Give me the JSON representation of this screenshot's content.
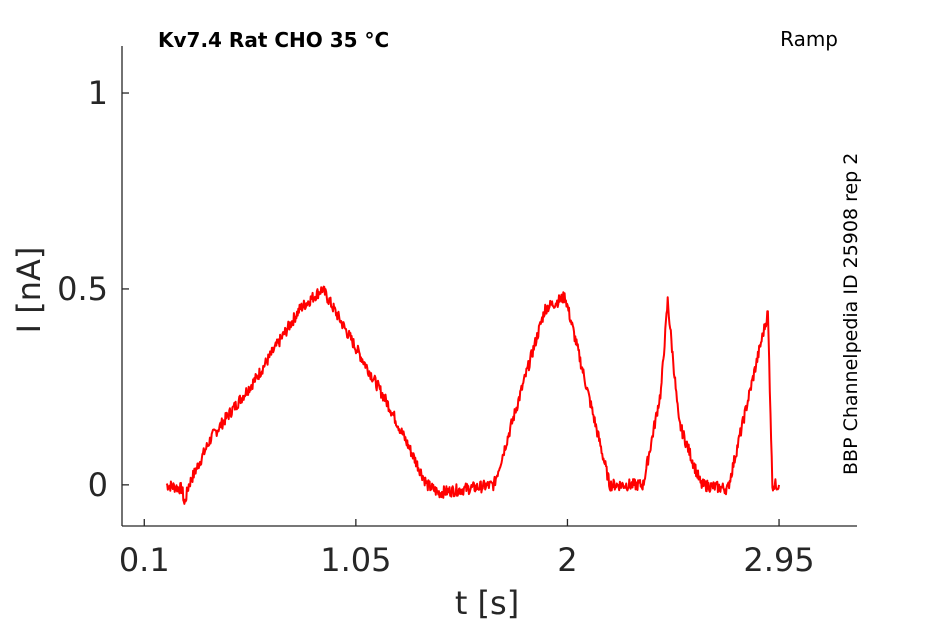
{
  "chart_data": {
    "type": "line",
    "title": "Kv7.4  Rat  CHO  35 °C",
    "protocol_label": "Ramp",
    "source_label": "BBP Channelpedia ID 25908 rep 2",
    "xlabel": "t [s]",
    "ylabel": "I [nA]",
    "xlim": [
      0.0,
      3.3
    ],
    "ylim": [
      -0.105,
      1.12
    ],
    "xticks": [
      0.1,
      1.05,
      2,
      2.95
    ],
    "xtick_labels": [
      "0.1",
      "1.05",
      "2",
      "2.95"
    ],
    "yticks": [
      0,
      0.5,
      1
    ],
    "ytick_labels": [
      "0",
      "0.5",
      "1"
    ],
    "grid": false,
    "color": "#ff0000",
    "series": [
      {
        "x": [
          0.2,
          0.27,
          0.28,
          0.3,
          0.4,
          0.6,
          0.8,
          0.9,
          1.0,
          1.2,
          1.37,
          1.42,
          1.67,
          1.9,
          1.99,
          2.19,
          2.34,
          2.42,
          2.45,
          2.5,
          2.6,
          2.72,
          2.9,
          2.92,
          2.95
        ],
        "y": [
          0.0,
          -0.01,
          -0.05,
          0.0,
          0.12,
          0.27,
          0.45,
          0.5,
          0.4,
          0.2,
          0.0,
          -0.02,
          0.0,
          0.45,
          0.48,
          0.0,
          0.0,
          0.24,
          0.47,
          0.16,
          0.0,
          -0.01,
          0.44,
          0.0,
          0.0
        ]
      }
    ]
  }
}
